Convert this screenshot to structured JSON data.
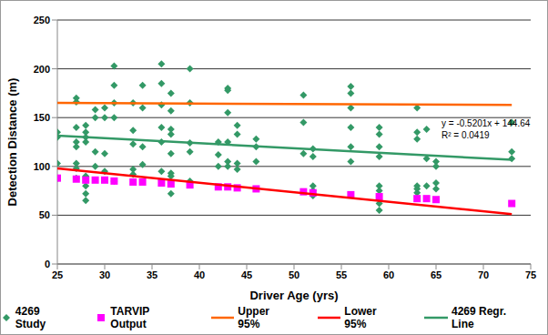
{
  "chart_data": {
    "type": "scatter",
    "x_label": "Driver Age (yrs)",
    "y_label": "Detection Distance (m)",
    "xlim": [
      25,
      75
    ],
    "xticks": [
      25,
      30,
      35,
      40,
      45,
      50,
      55,
      60,
      65,
      70,
      75
    ],
    "ylim": [
      0,
      250
    ],
    "yticks": [
      0,
      50,
      100,
      150,
      200,
      250
    ],
    "grid": true,
    "legend": "bottom",
    "annotations": [
      "y = -0.5201x + 144.64",
      "R² = 0.0419"
    ],
    "series": [
      {
        "name": "4269 Study",
        "type": "scatter",
        "marker": "diamond",
        "color": "#339966",
        "x": [
          25,
          25,
          25,
          25,
          27,
          27,
          27,
          27,
          27,
          27,
          27,
          27,
          28,
          28,
          28,
          28,
          28,
          28,
          28,
          28,
          29,
          29,
          29,
          29,
          30,
          30,
          30,
          30,
          31,
          31,
          31,
          31,
          31,
          33,
          33,
          33,
          33,
          33,
          34,
          34,
          34,
          34,
          36,
          36,
          36,
          36,
          36,
          36,
          37,
          37,
          37,
          37,
          37,
          37,
          37,
          37,
          39,
          39,
          39,
          39,
          39,
          42,
          42,
          42,
          43,
          43,
          43,
          43,
          43,
          43,
          44,
          44,
          44,
          44,
          46,
          46,
          46,
          51,
          51,
          51,
          52,
          52,
          52,
          52,
          52,
          56,
          56,
          56,
          56,
          56,
          56,
          59,
          59,
          59,
          59,
          59,
          59,
          59,
          59,
          63,
          63,
          63,
          63,
          63,
          63,
          64,
          64,
          64,
          65,
          65,
          65,
          65,
          73,
          73,
          73
        ],
        "values": [
          135,
          130,
          103,
          88,
          170,
          166,
          140,
          125,
          120,
          103,
          98,
          88,
          142,
          135,
          130,
          125,
          90,
          80,
          72,
          65,
          158,
          150,
          115,
          100,
          160,
          150,
          113,
          95,
          203,
          183,
          165,
          150,
          85,
          165,
          137,
          123,
          97,
          92,
          183,
          160,
          120,
          102,
          205,
          185,
          163,
          140,
          125,
          95,
          175,
          157,
          138,
          133,
          113,
          93,
          90,
          72,
          200,
          165,
          124,
          115,
          85,
          125,
          112,
          100,
          180,
          178,
          155,
          125,
          105,
          100,
          142,
          133,
          103,
          97,
          128,
          120,
          105,
          173,
          145,
          113,
          118,
          110,
          80,
          75,
          70,
          182,
          175,
          160,
          140,
          120,
          105,
          140,
          133,
          120,
          110,
          80,
          75,
          62,
          55,
          160,
          135,
          128,
          80,
          77,
          73,
          138,
          108,
          80,
          105,
          100,
          83,
          77,
          145,
          115,
          108
        ]
      },
      {
        "name": "TARVIP Output",
        "type": "scatter",
        "marker": "square",
        "color": "#ff00ff",
        "x": [
          25,
          27,
          28,
          29,
          30,
          31,
          33,
          34,
          36,
          37,
          39,
          42,
          43,
          44,
          46,
          51,
          52,
          56,
          59,
          63,
          64,
          65,
          73
        ],
        "values": [
          88,
          87,
          86,
          86,
          86,
          85,
          84,
          84,
          83,
          82,
          81,
          79,
          79,
          78,
          77,
          74,
          73,
          71,
          69,
          67,
          67,
          66,
          62
        ]
      },
      {
        "name": "Upper 95%",
        "type": "line",
        "line_style": "solid",
        "color": "#ff6600",
        "x": [
          25,
          73
        ],
        "values": [
          165,
          163
        ]
      },
      {
        "name": "Lower 95%",
        "type": "line",
        "line_style": "solid",
        "color": "#ff0000",
        "x": [
          25,
          73
        ],
        "values": [
          98,
          51
        ]
      },
      {
        "name": "4269 Regr. Line",
        "type": "line",
        "line_style": "solid",
        "color": "#339966",
        "x": [
          25,
          73
        ],
        "values": [
          131.6,
          106.7
        ]
      }
    ]
  }
}
